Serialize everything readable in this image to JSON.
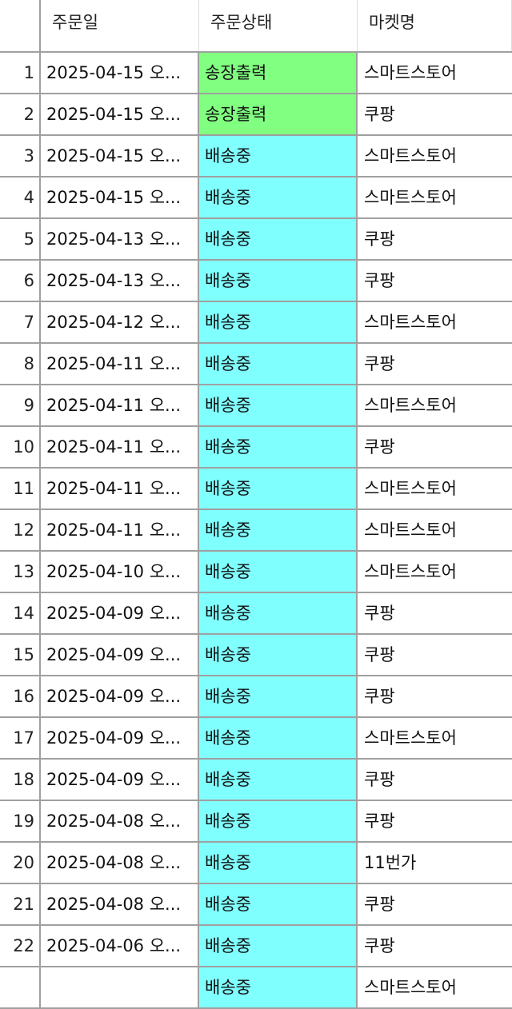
{
  "columns": [
    "",
    "주문일",
    "주문상태",
    "마켓명"
  ],
  "status_colors": {
    "송장출력": "#80ff80",
    "배송중": "#80ffff"
  },
  "rows": [
    {
      "n": "1",
      "date": "2025-04-15 오...",
      "status": "송장출력",
      "market": "스마트스토어"
    },
    {
      "n": "2",
      "date": "2025-04-15 오...",
      "status": "송장출력",
      "market": "쿠팡"
    },
    {
      "n": "3",
      "date": "2025-04-15 오...",
      "status": "배송중",
      "market": "스마트스토어"
    },
    {
      "n": "4",
      "date": "2025-04-15 오...",
      "status": "배송중",
      "market": "스마트스토어"
    },
    {
      "n": "5",
      "date": "2025-04-13 오...",
      "status": "배송중",
      "market": "쿠팡"
    },
    {
      "n": "6",
      "date": "2025-04-13 오...",
      "status": "배송중",
      "market": "쿠팡"
    },
    {
      "n": "7",
      "date": "2025-04-12 오...",
      "status": "배송중",
      "market": "스마트스토어"
    },
    {
      "n": "8",
      "date": "2025-04-11 오...",
      "status": "배송중",
      "market": "쿠팡"
    },
    {
      "n": "9",
      "date": "2025-04-11 오...",
      "status": "배송중",
      "market": "스마트스토어"
    },
    {
      "n": "10",
      "date": "2025-04-11 오...",
      "status": "배송중",
      "market": "쿠팡"
    },
    {
      "n": "11",
      "date": "2025-04-11 오...",
      "status": "배송중",
      "market": "스마트스토어"
    },
    {
      "n": "12",
      "date": "2025-04-11 오...",
      "status": "배송중",
      "market": "스마트스토어"
    },
    {
      "n": "13",
      "date": "2025-04-10 오...",
      "status": "배송중",
      "market": "스마트스토어"
    },
    {
      "n": "14",
      "date": "2025-04-09 오...",
      "status": "배송중",
      "market": "쿠팡"
    },
    {
      "n": "15",
      "date": "2025-04-09 오...",
      "status": "배송중",
      "market": "쿠팡"
    },
    {
      "n": "16",
      "date": "2025-04-09 오...",
      "status": "배송중",
      "market": "쿠팡"
    },
    {
      "n": "17",
      "date": "2025-04-09 오...",
      "status": "배송중",
      "market": "스마트스토어"
    },
    {
      "n": "18",
      "date": "2025-04-09 오...",
      "status": "배송중",
      "market": "쿠팡"
    },
    {
      "n": "19",
      "date": "2025-04-08 오...",
      "status": "배송중",
      "market": "쿠팡"
    },
    {
      "n": "20",
      "date": "2025-04-08 오...",
      "status": "배송중",
      "market": "11번가"
    },
    {
      "n": "21",
      "date": "2025-04-08 오...",
      "status": "배송중",
      "market": "쿠팡"
    },
    {
      "n": "22",
      "date": "2025-04-06 오...",
      "status": "배송중",
      "market": "쿠팡"
    },
    {
      "n": "",
      "date": "",
      "status": "배송중",
      "market": "스마트스토어"
    }
  ]
}
